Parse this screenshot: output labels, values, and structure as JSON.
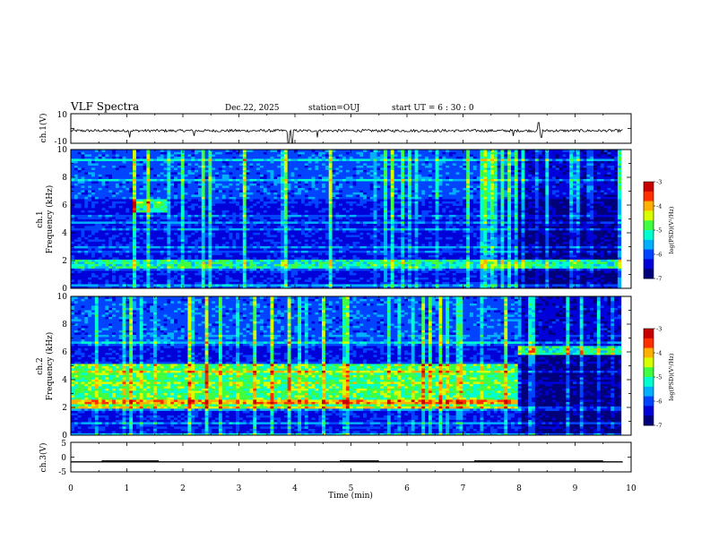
{
  "header": {
    "title": "VLF Spectra",
    "date": "Dec.22, 2025",
    "station": "station=OUJ",
    "start": "start UT =  6 : 30 : 0"
  },
  "chart_data": [
    {
      "type": "line",
      "name": "ch1-waveform",
      "ylabel": "ch.1(V)",
      "ylim": [
        -10,
        10
      ],
      "yticks": [
        "10",
        "-10"
      ],
      "baseline": -1.5,
      "noise_amplitude": 1.5,
      "spikes": [
        [
          1.05,
          -6
        ],
        [
          2.2,
          -5
        ],
        [
          3.88,
          -10
        ],
        [
          3.95,
          -10
        ],
        [
          4.4,
          -6
        ],
        [
          8.35,
          4
        ],
        [
          8.4,
          -6
        ],
        [
          7.9,
          -5
        ]
      ]
    },
    {
      "type": "heatmap",
      "name": "ch1-spectrogram",
      "ylabel_lines": [
        "ch.1",
        "Frequency (kHz)"
      ],
      "ylim": [
        0,
        10
      ],
      "yticks": [
        "0",
        "2",
        "4",
        "6",
        "8",
        "10"
      ],
      "colorbar": {
        "label": "log(PSD)(V²/Hz)",
        "ticks": [
          "-3",
          "-4",
          "-5",
          "-6",
          "-7"
        ],
        "range": [
          -7,
          -3
        ]
      },
      "features": [
        {
          "label": "hiss band ~1.5-2 kHz",
          "t": [
            0,
            9.8
          ],
          "f": [
            1.5,
            2.1
          ],
          "level": -5.2
        },
        {
          "label": "emission ~5-6.5 kHz",
          "t": [
            1.1,
            1.7
          ],
          "f": [
            5.5,
            6.5
          ],
          "level": -5.0
        }
      ],
      "quiet_after_min": 8.0
    },
    {
      "type": "heatmap",
      "name": "ch2-spectrogram",
      "ylabel_lines": [
        "ch.2",
        "Frequency (kHz)"
      ],
      "ylim": [
        0,
        10
      ],
      "yticks": [
        "0",
        "2",
        "4",
        "6",
        "8",
        "10"
      ],
      "colorbar": {
        "label": "log(PSD)(V²/Hz)",
        "ticks": [
          "-3",
          "-4",
          "-5",
          "-6",
          "-7"
        ],
        "range": [
          -7,
          -3
        ]
      },
      "features": [
        {
          "label": "broad band 2-5 kHz",
          "t": [
            0,
            7.95
          ],
          "f": [
            2.0,
            5.2
          ],
          "level": -4.9
        },
        {
          "label": "band ~6 kHz after 8 min",
          "t": [
            7.95,
            9.8
          ],
          "f": [
            5.8,
            6.5
          ],
          "level": -5.1
        }
      ],
      "quiet_after_min": 7.95
    },
    {
      "type": "line",
      "name": "ch3-trace",
      "ylabel": "ch.3(V)",
      "ylim": [
        -5,
        5
      ],
      "yticks": [
        "5",
        "0",
        "-5"
      ],
      "baseline": -1.6,
      "pulses": [
        [
          0.55,
          1.57
        ],
        [
          4.8,
          5.5
        ],
        [
          7.2,
          9.5
        ]
      ],
      "pulse_level": -1.1,
      "xlabel": "Time (min)",
      "xlim": [
        0,
        10
      ],
      "xticks": [
        "0",
        "1",
        "2",
        "3",
        "4",
        "5",
        "6",
        "7",
        "8",
        "9",
        "10"
      ]
    }
  ],
  "colormap": [
    "#00007a",
    "#0000d8",
    "#0044ff",
    "#00b0ff",
    "#00ffd0",
    "#40ff40",
    "#d8ff00",
    "#ffb000",
    "#ff3000",
    "#c80000"
  ]
}
